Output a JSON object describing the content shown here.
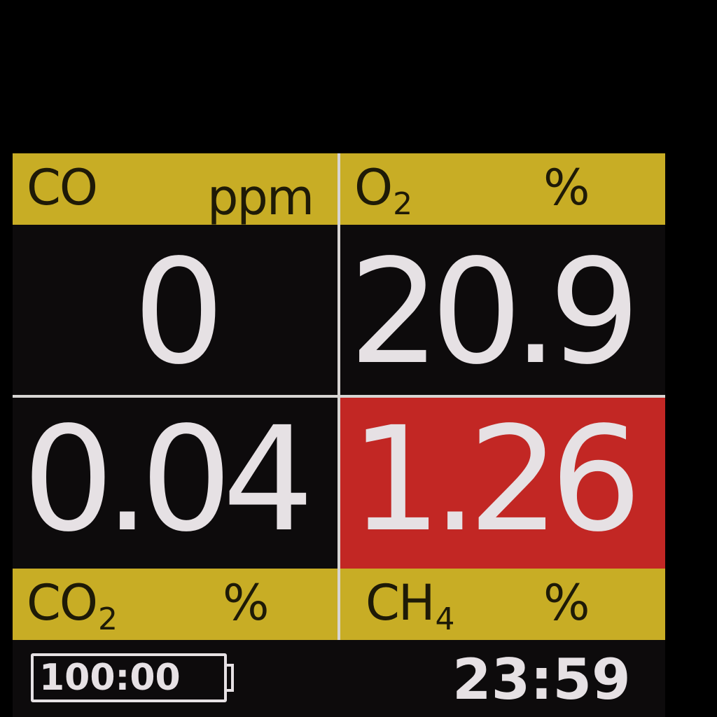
{
  "colors": {
    "label_bar": "#c8ad25",
    "alarm": "#c22724",
    "reading_text": "#e6e1e4",
    "background": "#0d0b0c"
  },
  "sensors": {
    "co": {
      "gas": "CO",
      "gas_sub": "",
      "unit": "ppm",
      "value": "0",
      "alarm": false
    },
    "o2": {
      "gas": "O",
      "gas_sub": "2",
      "unit": "%",
      "value": "20.9",
      "alarm": false
    },
    "co2": {
      "gas": "CO",
      "gas_sub": "2",
      "unit": "%",
      "value": "0.04",
      "alarm": false
    },
    "ch4": {
      "gas": "CH",
      "gas_sub": "4",
      "unit": "%",
      "value": "1.26",
      "alarm": true
    }
  },
  "status": {
    "battery_icon": "battery-icon",
    "battery_text": "100:00",
    "clock": "23:59"
  }
}
